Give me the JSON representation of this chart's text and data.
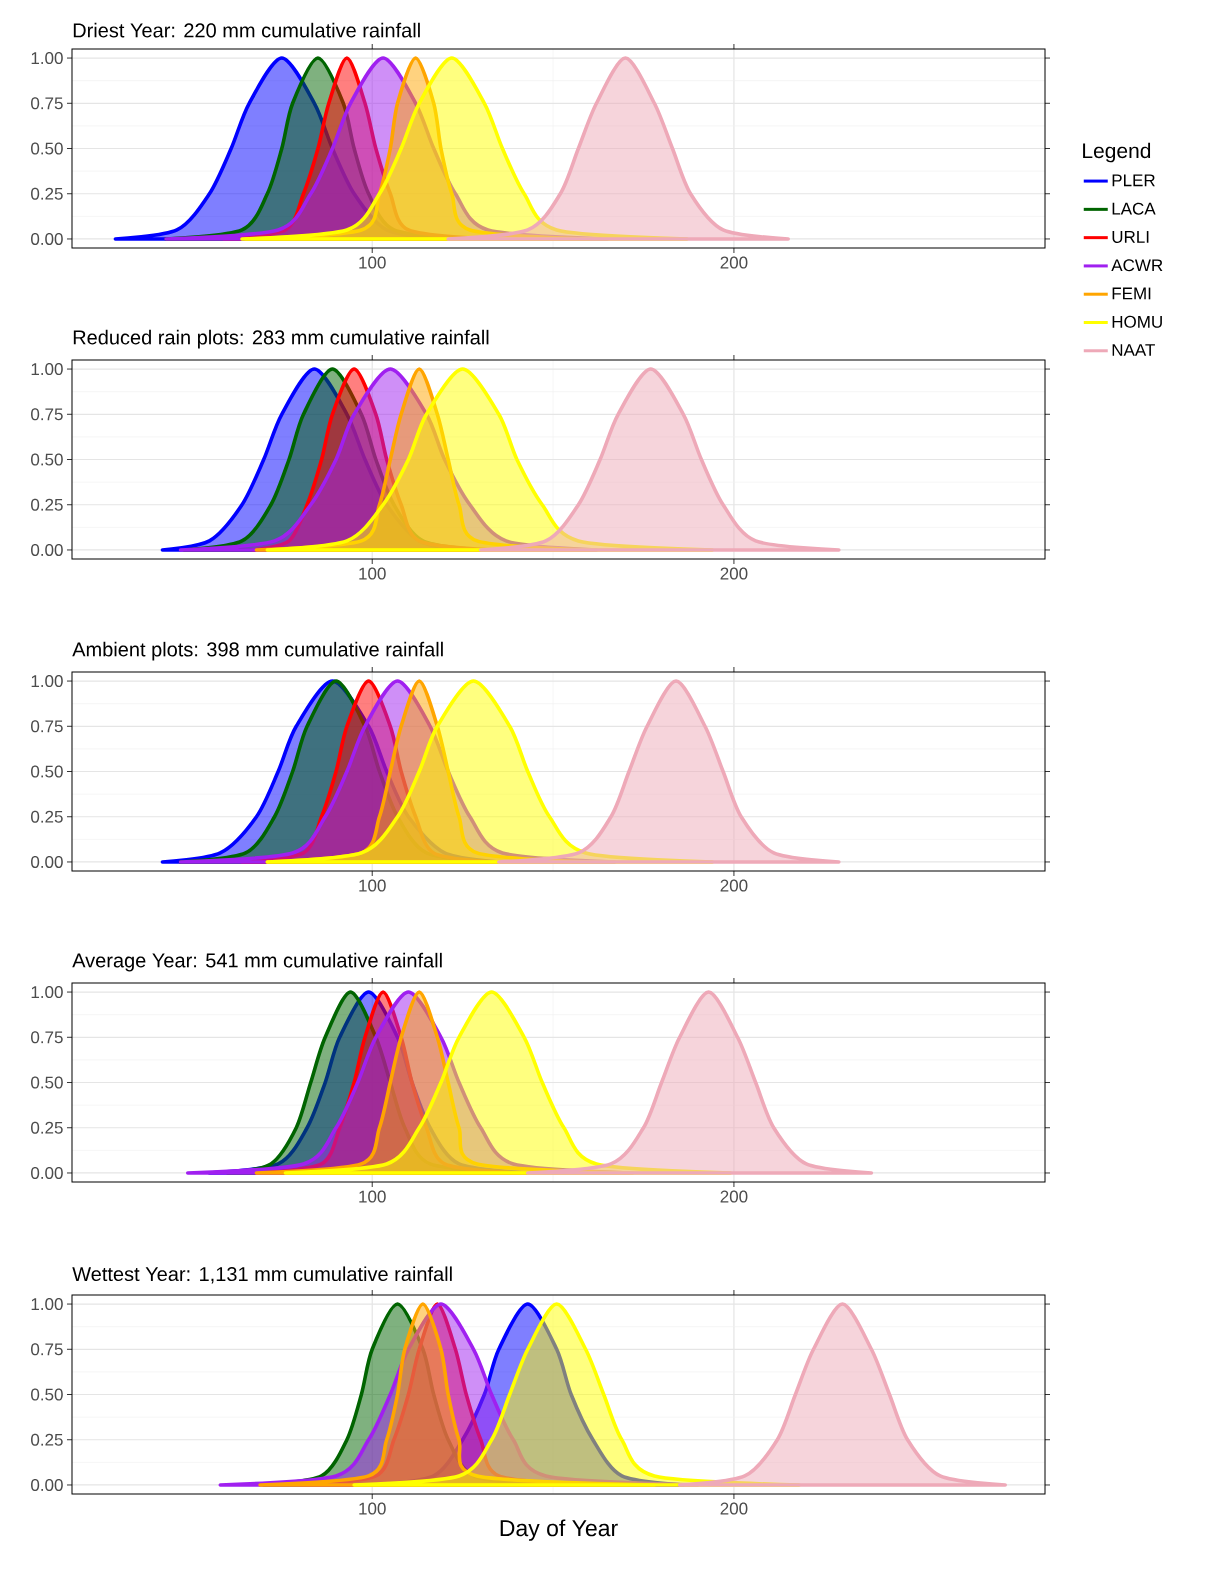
{
  "chart_data": [
    {
      "type": "area",
      "title": "Driest Year: 220 mm cumulative rainfall",
      "legend": "right",
      "legend_title": "Legend",
      "grid": true,
      "xlim": [
        17,
        286
      ],
      "ylim": [
        -0.05,
        1.05
      ],
      "xticks": [
        100,
        200
      ],
      "yticks": [
        {
          "value": 0,
          "label": "0.00"
        },
        {
          "value": 0.25,
          "label": "0.25"
        },
        {
          "value": 0.5,
          "label": "0.50"
        },
        {
          "value": 0.75,
          "label": "0.75"
        },
        {
          "value": 1,
          "label": "1.00"
        }
      ],
      "series": [
        {
          "name": "PLER",
          "color": "#0000ff",
          "x": [
            29,
            46,
            55,
            61,
            66,
            75,
            84,
            89,
            95,
            104,
            120
          ],
          "values": [
            0,
            0.05,
            0.25,
            0.5,
            0.75,
            1,
            0.75,
            0.5,
            0.25,
            0.05,
            0
          ]
        },
        {
          "name": "LACA",
          "color": "#006400",
          "x": [
            43,
            64,
            71,
            75,
            78,
            85,
            92,
            95,
            99,
            106,
            127
          ],
          "values": [
            0,
            0.05,
            0.25,
            0.5,
            0.75,
            1,
            0.75,
            0.5,
            0.25,
            0.05,
            0
          ]
        },
        {
          "name": "URLI",
          "color": "#ff0000",
          "x": [
            59,
            76,
            81,
            85,
            88,
            93,
            98,
            101,
            105,
            110,
            132
          ],
          "values": [
            0,
            0.05,
            0.25,
            0.5,
            0.75,
            1,
            0.75,
            0.5,
            0.25,
            0.05,
            0
          ]
        },
        {
          "name": "ACWR",
          "color": "#a020f0",
          "x": [
            43,
            74,
            83,
            89,
            94,
            103,
            112,
            117,
            123,
            132,
            165
          ],
          "values": [
            0,
            0.05,
            0.25,
            0.5,
            0.75,
            1,
            0.75,
            0.5,
            0.25,
            0.05,
            0
          ]
        },
        {
          "name": "FEMI",
          "color": "#ffa500",
          "x": [
            65,
            97,
            102,
            105,
            107,
            112,
            117,
            119,
            122,
            127,
            160
          ],
          "values": [
            0,
            0.05,
            0.25,
            0.5,
            0.75,
            1,
            0.75,
            0.5,
            0.25,
            0.05,
            0
          ]
        },
        {
          "name": "HOMU",
          "color": "#ffff00",
          "x": [
            64,
            93,
            102,
            108,
            113,
            122,
            131,
            136,
            142,
            151,
            187
          ],
          "values": [
            0,
            0.05,
            0.25,
            0.5,
            0.75,
            1,
            0.75,
            0.5,
            0.25,
            0.05,
            0
          ]
        },
        {
          "name": "NAAT",
          "color": "#eea9b8",
          "x": [
            121,
            143,
            152,
            157,
            162,
            170,
            178,
            183,
            188,
            197,
            215
          ],
          "values": [
            0,
            0.05,
            0.25,
            0.5,
            0.75,
            1,
            0.75,
            0.5,
            0.25,
            0.05,
            0
          ]
        }
      ]
    },
    {
      "type": "area",
      "title": "Reduced rain plots: 283 mm cumulative rainfall",
      "grid": true,
      "xlim": [
        17,
        286
      ],
      "ylim": [
        -0.05,
        1.05
      ],
      "xticks": [
        100,
        200
      ],
      "yticks": [
        {
          "value": 0,
          "label": "0.00"
        },
        {
          "value": 0.25,
          "label": "0.25"
        },
        {
          "value": 0.5,
          "label": "0.50"
        },
        {
          "value": 0.75,
          "label": "0.75"
        },
        {
          "value": 1,
          "label": "1.00"
        }
      ],
      "series": [
        {
          "color": "#0000ff",
          "x": [
            42,
            55,
            64,
            70,
            75,
            84,
            93,
            98,
            104,
            113,
            125
          ],
          "values": [
            0,
            0.05,
            0.25,
            0.5,
            0.75,
            1,
            0.75,
            0.5,
            0.25,
            0.05,
            0
          ]
        },
        {
          "color": "#006400",
          "x": [
            48,
            64,
            72,
            77,
            81,
            89,
            97,
            101,
            106,
            114,
            130
          ],
          "values": [
            0,
            0.05,
            0.25,
            0.5,
            0.75,
            1,
            0.75,
            0.5,
            0.25,
            0.05,
            0
          ]
        },
        {
          "color": "#ff0000",
          "x": [
            67,
            77,
            82,
            86,
            89,
            95,
            101,
            104,
            108,
            113,
            133
          ],
          "values": [
            0,
            0.05,
            0.25,
            0.5,
            0.75,
            1,
            0.75,
            0.5,
            0.25,
            0.05,
            0
          ]
        },
        {
          "color": "#a020f0",
          "x": [
            47,
            73,
            83,
            90,
            95,
            105,
            115,
            120,
            127,
            137,
            162
          ],
          "values": [
            0,
            0.05,
            0.25,
            0.5,
            0.75,
            1,
            0.75,
            0.5,
            0.25,
            0.05,
            0
          ]
        },
        {
          "color": "#ffa500",
          "x": [
            68,
            97,
            102,
            105,
            108,
            113,
            118,
            121,
            124,
            129,
            160
          ],
          "values": [
            0,
            0.05,
            0.25,
            0.5,
            0.75,
            1,
            0.75,
            0.5,
            0.25,
            0.05,
            0
          ]
        },
        {
          "color": "#ffff00",
          "x": [
            71,
            93,
            103,
            110,
            115,
            125,
            135,
            140,
            147,
            157,
            194
          ],
          "values": [
            0,
            0.05,
            0.25,
            0.5,
            0.75,
            1,
            0.75,
            0.5,
            0.25,
            0.05,
            0
          ]
        },
        {
          "color": "#eea9b8",
          "x": [
            130,
            148,
            157,
            163,
            168,
            177,
            186,
            191,
            197,
            206,
            229
          ],
          "values": [
            0,
            0.05,
            0.25,
            0.5,
            0.75,
            1,
            0.75,
            0.5,
            0.25,
            0.05,
            0
          ]
        }
      ]
    },
    {
      "type": "area",
      "title": "Ambient plots: 398 mm cumulative rainfall",
      "grid": true,
      "xlim": [
        17,
        286
      ],
      "ylim": [
        -0.05,
        1.05
      ],
      "xticks": [
        100,
        200
      ],
      "yticks": [
        {
          "value": 0,
          "label": "0.00"
        },
        {
          "value": 0.25,
          "label": "0.25"
        },
        {
          "value": 0.5,
          "label": "0.50"
        },
        {
          "value": 0.75,
          "label": "0.75"
        },
        {
          "value": 1,
          "label": "1.00"
        }
      ],
      "series": [
        {
          "color": "#0000ff",
          "x": [
            42,
            58,
            68,
            74,
            79,
            89,
            99,
            104,
            110,
            120,
            135
          ],
          "values": [
            0,
            0.05,
            0.25,
            0.5,
            0.75,
            1,
            0.75,
            0.5,
            0.25,
            0.05,
            0
          ]
        },
        {
          "color": "#006400",
          "x": [
            47,
            65,
            73,
            78,
            82,
            90,
            98,
            102,
            107,
            115,
            133
          ],
          "values": [
            0,
            0.05,
            0.25,
            0.5,
            0.75,
            1,
            0.75,
            0.5,
            0.25,
            0.05,
            0
          ]
        },
        {
          "color": "#ff0000",
          "x": [
            64,
            81,
            86,
            90,
            93,
            99,
            105,
            108,
            112,
            117,
            133
          ],
          "values": [
            0,
            0.05,
            0.25,
            0.5,
            0.75,
            1,
            0.75,
            0.5,
            0.25,
            0.05,
            0
          ]
        },
        {
          "color": "#a020f0",
          "x": [
            47,
            78,
            87,
            93,
            98,
            107,
            116,
            121,
            127,
            136,
            167
          ],
          "values": [
            0,
            0.05,
            0.25,
            0.5,
            0.75,
            1,
            0.75,
            0.5,
            0.25,
            0.05,
            0
          ]
        },
        {
          "color": "#ffa500",
          "x": [
            71,
            97,
            102,
            105,
            108,
            113,
            118,
            121,
            124,
            129,
            160
          ],
          "values": [
            0,
            0.05,
            0.25,
            0.5,
            0.75,
            1,
            0.75,
            0.5,
            0.25,
            0.05,
            0
          ]
        },
        {
          "color": "#ffff00",
          "x": [
            71,
            97,
            107,
            113,
            118,
            128,
            138,
            143,
            149,
            159,
            194
          ],
          "values": [
            0,
            0.05,
            0.25,
            0.5,
            0.75,
            1,
            0.75,
            0.5,
            0.25,
            0.05,
            0
          ]
        },
        {
          "color": "#eea9b8",
          "x": [
            135,
            157,
            166,
            171,
            176,
            184,
            192,
            197,
            202,
            211,
            229
          ],
          "values": [
            0,
            0.05,
            0.25,
            0.5,
            0.75,
            1,
            0.75,
            0.5,
            0.25,
            0.05,
            0
          ]
        }
      ]
    },
    {
      "type": "area",
      "title": "Average Year: 541 mm cumulative rainfall",
      "grid": true,
      "xlim": [
        17,
        286
      ],
      "ylim": [
        -0.05,
        1.05
      ],
      "xticks": [
        100,
        200
      ],
      "yticks": [
        {
          "value": 0,
          "label": "0.00"
        },
        {
          "value": 0.25,
          "label": "0.25"
        },
        {
          "value": 0.5,
          "label": "0.50"
        },
        {
          "value": 0.75,
          "label": "0.75"
        },
        {
          "value": 1,
          "label": "1.00"
        }
      ],
      "series": [
        {
          "color": "#0000ff",
          "x": [
            55,
            74,
            82,
            87,
            91,
            99,
            107,
            111,
            116,
            124,
            143
          ],
          "values": [
            0,
            0.05,
            0.25,
            0.5,
            0.75,
            1,
            0.75,
            0.5,
            0.25,
            0.05,
            0
          ]
        },
        {
          "color": "#006400",
          "x": [
            60,
            72,
            79,
            83,
            87,
            94,
            101,
            105,
            109,
            116,
            140
          ],
          "values": [
            0,
            0.05,
            0.25,
            0.5,
            0.75,
            1,
            0.75,
            0.5,
            0.25,
            0.05,
            0
          ]
        },
        {
          "color": "#ff0000",
          "x": [
            68,
            86,
            91,
            95,
            98,
            103,
            108,
            111,
            115,
            120,
            140
          ],
          "values": [
            0,
            0.05,
            0.25,
            0.5,
            0.75,
            1,
            0.75,
            0.5,
            0.25,
            0.05,
            0
          ]
        },
        {
          "color": "#a020f0",
          "x": [
            49,
            81,
            90,
            96,
            101,
            110,
            119,
            124,
            130,
            139,
            171
          ],
          "values": [
            0,
            0.05,
            0.25,
            0.5,
            0.75,
            1,
            0.75,
            0.5,
            0.25,
            0.05,
            0
          ]
        },
        {
          "color": "#ffa500",
          "x": [
            68,
            97,
            102,
            105,
            108,
            113,
            118,
            121,
            124,
            129,
            172
          ],
          "values": [
            0,
            0.05,
            0.25,
            0.5,
            0.75,
            1,
            0.75,
            0.5,
            0.25,
            0.05,
            0
          ]
        },
        {
          "color": "#ffff00",
          "x": [
            76,
            104,
            113,
            119,
            124,
            133,
            142,
            147,
            153,
            162,
            199
          ],
          "values": [
            0,
            0.05,
            0.25,
            0.5,
            0.75,
            1,
            0.75,
            0.5,
            0.25,
            0.05,
            0
          ]
        },
        {
          "color": "#eea9b8",
          "x": [
            143,
            166,
            175,
            180,
            185,
            193,
            201,
            206,
            211,
            220,
            238
          ],
          "values": [
            0,
            0.05,
            0.25,
            0.5,
            0.75,
            1,
            0.75,
            0.5,
            0.25,
            0.05,
            0
          ]
        }
      ]
    },
    {
      "type": "area",
      "title": "Wettest Year: 1,131 mm cumulative rainfall",
      "xlabel": "Day of Year",
      "grid": true,
      "xlim": [
        17,
        286
      ],
      "ylim": [
        -0.05,
        1.05
      ],
      "xticks": [
        100,
        200
      ],
      "yticks": [
        {
          "value": 0,
          "label": "0.00"
        },
        {
          "value": 0.25,
          "label": "0.25"
        },
        {
          "value": 0.5,
          "label": "0.50"
        },
        {
          "value": 0.75,
          "label": "0.75"
        },
        {
          "value": 1,
          "label": "1.00"
        }
      ],
      "series": [
        {
          "color": "#0000ff",
          "x": [
            100,
            117,
            125,
            131,
            135,
            143,
            151,
            155,
            161,
            169,
            186
          ],
          "values": [
            0,
            0.05,
            0.25,
            0.5,
            0.75,
            1,
            0.75,
            0.5,
            0.25,
            0.05,
            0
          ]
        },
        {
          "color": "#006400",
          "x": [
            70,
            86,
            93,
            97,
            100,
            107,
            114,
            117,
            121,
            128,
            147
          ],
          "values": [
            0,
            0.05,
            0.25,
            0.5,
            0.75,
            1,
            0.75,
            0.5,
            0.25,
            0.05,
            0
          ]
        },
        {
          "color": "#ff0000",
          "x": [
            80,
            101,
            106,
            110,
            113,
            118,
            123,
            126,
            130,
            135,
            160
          ],
          "values": [
            0,
            0.05,
            0.25,
            0.5,
            0.75,
            1,
            0.75,
            0.5,
            0.25,
            0.05,
            0
          ]
        },
        {
          "color": "#a020f0",
          "x": [
            58,
            90,
            99,
            105,
            110,
            119,
            128,
            133,
            139,
            148,
            190
          ],
          "values": [
            0,
            0.05,
            0.25,
            0.5,
            0.75,
            1,
            0.75,
            0.5,
            0.25,
            0.05,
            0
          ]
        },
        {
          "color": "#ffa500",
          "x": [
            69,
            99,
            104,
            107,
            109,
            114,
            119,
            121,
            124,
            129,
            178
          ],
          "values": [
            0,
            0.05,
            0.25,
            0.5,
            0.75,
            1,
            0.75,
            0.5,
            0.25,
            0.05,
            0
          ]
        },
        {
          "color": "#ffff00",
          "x": [
            95,
            124,
            133,
            138,
            143,
            151,
            159,
            164,
            169,
            178,
            218
          ],
          "values": [
            0,
            0.05,
            0.25,
            0.5,
            0.75,
            1,
            0.75,
            0.5,
            0.25,
            0.05,
            0
          ]
        },
        {
          "color": "#eea9b8",
          "x": [
            185,
            203,
            212,
            217,
            222,
            230,
            238,
            243,
            248,
            257,
            275
          ],
          "values": [
            0,
            0.05,
            0.25,
            0.5,
            0.75,
            1,
            0.75,
            0.5,
            0.25,
            0.05,
            0
          ]
        }
      ]
    }
  ]
}
